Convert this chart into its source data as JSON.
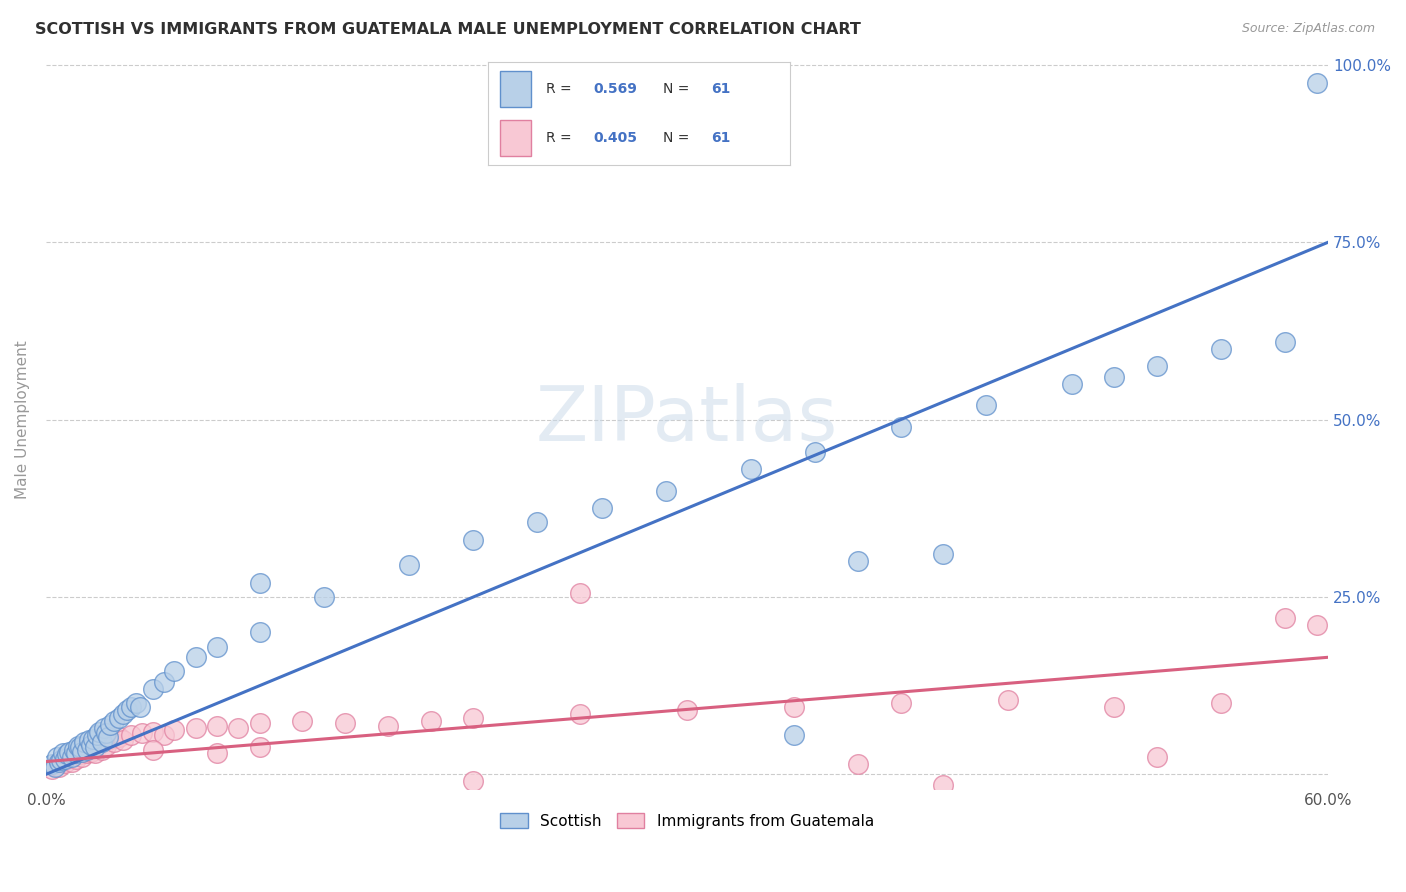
{
  "title": "SCOTTISH VS IMMIGRANTS FROM GUATEMALA MALE UNEMPLOYMENT CORRELATION CHART",
  "source": "Source: ZipAtlas.com",
  "ylabel": "Male Unemployment",
  "xlim": [
    0.0,
    0.6
  ],
  "ylim": [
    -0.02,
    1.02
  ],
  "xticks": [
    0.0,
    0.1,
    0.2,
    0.3,
    0.4,
    0.5,
    0.6
  ],
  "xticklabels": [
    "0.0%",
    "",
    "",
    "",
    "",
    "",
    "60.0%"
  ],
  "yticks": [
    0.0,
    0.25,
    0.5,
    0.75,
    1.0
  ],
  "yticklabels_right": [
    "",
    "25.0%",
    "50.0%",
    "75.0%",
    "100.0%"
  ],
  "legend_labels": [
    "Scottish",
    "Immigrants from Guatemala"
  ],
  "r_scottish": 0.569,
  "n_scottish": 61,
  "r_guatemala": 0.405,
  "n_guatemala": 61,
  "color_scottish_fill": "#b8d0e8",
  "color_scottish_edge": "#6090cc",
  "color_guatemala_fill": "#f8c8d4",
  "color_guatemala_edge": "#e080a0",
  "line_color_scottish": "#4472c4",
  "line_color_guatemala": "#d86080",
  "title_color": "#303030",
  "watermark": "ZIPatlas",
  "scottish_line_x0": 0.0,
  "scottish_line_y0": 0.0,
  "scottish_line_x1": 0.6,
  "scottish_line_y1": 0.75,
  "guatemala_line_x0": 0.0,
  "guatemala_line_y0": 0.018,
  "guatemala_line_x1": 0.6,
  "guatemala_line_y1": 0.165,
  "scottish_x": [
    0.003,
    0.004,
    0.005,
    0.006,
    0.007,
    0.008,
    0.009,
    0.01,
    0.011,
    0.012,
    0.013,
    0.014,
    0.015,
    0.016,
    0.017,
    0.018,
    0.019,
    0.02,
    0.021,
    0.022,
    0.023,
    0.024,
    0.025,
    0.026,
    0.027,
    0.028,
    0.029,
    0.03,
    0.032,
    0.034,
    0.036,
    0.038,
    0.04,
    0.042,
    0.044,
    0.05,
    0.055,
    0.06,
    0.08,
    0.1,
    0.13,
    0.17,
    0.2,
    0.23,
    0.26,
    0.29,
    0.33,
    0.36,
    0.4,
    0.44,
    0.48,
    0.5,
    0.52,
    0.55,
    0.58,
    0.595,
    0.07,
    0.1,
    0.38,
    0.42,
    0.35
  ],
  "scottish_y": [
    0.015,
    0.01,
    0.025,
    0.018,
    0.02,
    0.03,
    0.022,
    0.028,
    0.032,
    0.025,
    0.035,
    0.03,
    0.04,
    0.038,
    0.032,
    0.045,
    0.035,
    0.048,
    0.042,
    0.05,
    0.038,
    0.055,
    0.06,
    0.045,
    0.065,
    0.058,
    0.052,
    0.07,
    0.075,
    0.08,
    0.085,
    0.09,
    0.095,
    0.1,
    0.095,
    0.12,
    0.13,
    0.145,
    0.18,
    0.2,
    0.25,
    0.295,
    0.33,
    0.355,
    0.375,
    0.4,
    0.43,
    0.455,
    0.49,
    0.52,
    0.55,
    0.56,
    0.575,
    0.6,
    0.61,
    0.975,
    0.165,
    0.27,
    0.3,
    0.31,
    0.055
  ],
  "guatemala_x": [
    0.003,
    0.004,
    0.005,
    0.006,
    0.007,
    0.008,
    0.009,
    0.01,
    0.011,
    0.012,
    0.013,
    0.014,
    0.015,
    0.016,
    0.017,
    0.018,
    0.019,
    0.02,
    0.021,
    0.022,
    0.023,
    0.024,
    0.025,
    0.026,
    0.027,
    0.028,
    0.03,
    0.032,
    0.034,
    0.036,
    0.04,
    0.045,
    0.05,
    0.055,
    0.06,
    0.07,
    0.08,
    0.09,
    0.1,
    0.12,
    0.14,
    0.16,
    0.18,
    0.2,
    0.25,
    0.3,
    0.35,
    0.4,
    0.45,
    0.5,
    0.55,
    0.58,
    0.595,
    0.08,
    0.1,
    0.2,
    0.25,
    0.38,
    0.42,
    0.52,
    0.05
  ],
  "guatemala_y": [
    0.008,
    0.012,
    0.015,
    0.01,
    0.018,
    0.02,
    0.016,
    0.022,
    0.025,
    0.018,
    0.028,
    0.022,
    0.032,
    0.028,
    0.025,
    0.035,
    0.03,
    0.038,
    0.032,
    0.04,
    0.03,
    0.042,
    0.045,
    0.035,
    0.048,
    0.04,
    0.05,
    0.045,
    0.052,
    0.048,
    0.055,
    0.058,
    0.06,
    0.055,
    0.062,
    0.065,
    0.068,
    0.065,
    0.072,
    0.075,
    0.072,
    0.068,
    0.075,
    0.08,
    0.085,
    0.09,
    0.095,
    0.1,
    0.105,
    0.095,
    0.1,
    0.22,
    0.21,
    0.03,
    0.038,
    -0.01,
    0.255,
    0.015,
    -0.015,
    0.025,
    0.035
  ]
}
